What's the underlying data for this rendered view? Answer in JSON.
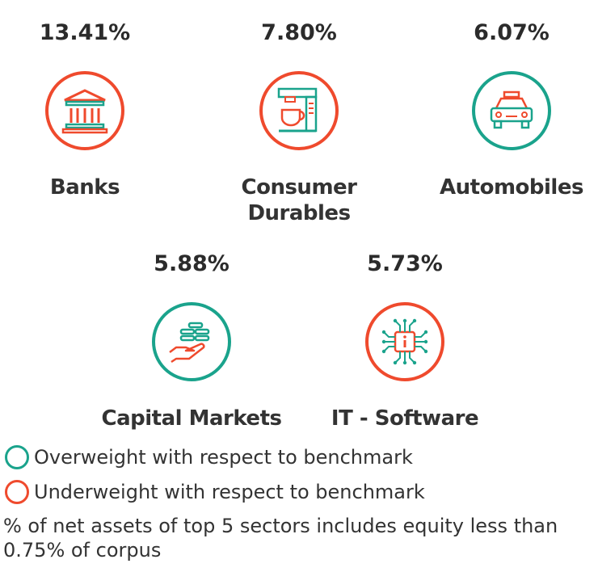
{
  "sectors": [
    {
      "name": "Banks",
      "percent": "13.41%",
      "status": "underweight",
      "icon": "bank-icon"
    },
    {
      "name": "Consumer Durables",
      "percent": "7.80%",
      "status": "underweight",
      "icon": "coffee-machine-icon"
    },
    {
      "name": "Automobiles",
      "percent": "6.07%",
      "status": "overweight",
      "icon": "car-icon"
    },
    {
      "name": "Capital Markets",
      "percent": "5.88%",
      "status": "overweight",
      "icon": "hand-coins-icon"
    },
    {
      "name": "IT - Software",
      "percent": "5.73%",
      "status": "underweight",
      "icon": "chip-info-icon"
    }
  ],
  "legend": {
    "overweight": "Overweight with respect to benchmark",
    "underweight": "Underweight with respect to benchmark"
  },
  "note": "% of net assets of top 5 sectors includes equity less than 0.75% of corpus",
  "colors": {
    "overweight": "#1aa38c",
    "underweight": "#ef4a2d"
  }
}
